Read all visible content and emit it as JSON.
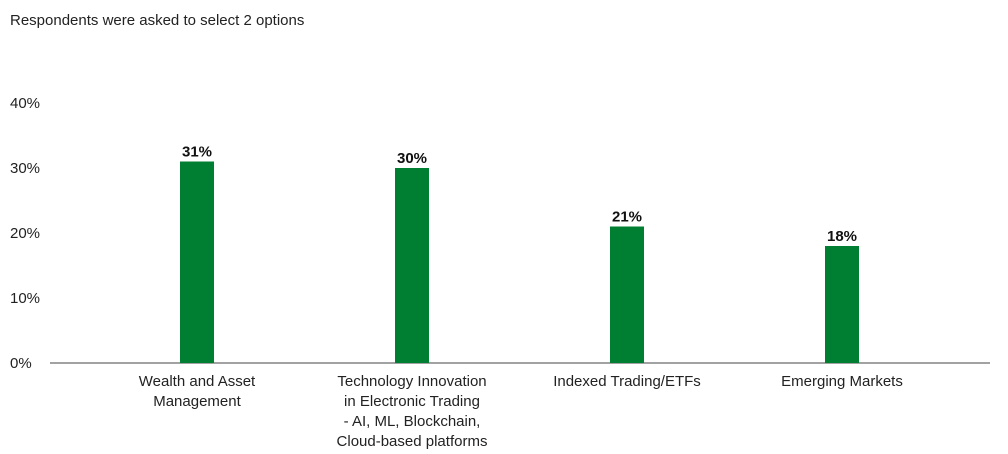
{
  "subtitle": "Respondents were asked to select 2 options",
  "chart_data": {
    "type": "bar",
    "title": "",
    "subtitle": "Respondents were asked to select 2 options",
    "categories": [
      [
        "Wealth and Asset",
        "Management"
      ],
      [
        "Technology Innovation",
        "in Electronic Trading",
        "- AI, ML, Blockchain,",
        "Cloud-based platforms"
      ],
      [
        "Indexed Trading/ETFs"
      ],
      [
        "Emerging Markets"
      ]
    ],
    "values": [
      31,
      30,
      21,
      18
    ],
    "data_labels": [
      "31%",
      "30%",
      "21%",
      "18%"
    ],
    "y_ticks": [
      "0%",
      "10%",
      "20%",
      "30%",
      "40%"
    ],
    "ylim": [
      0,
      40
    ],
    "grid": false,
    "bar_color": "#007f33",
    "xlabel": "",
    "ylabel": ""
  }
}
